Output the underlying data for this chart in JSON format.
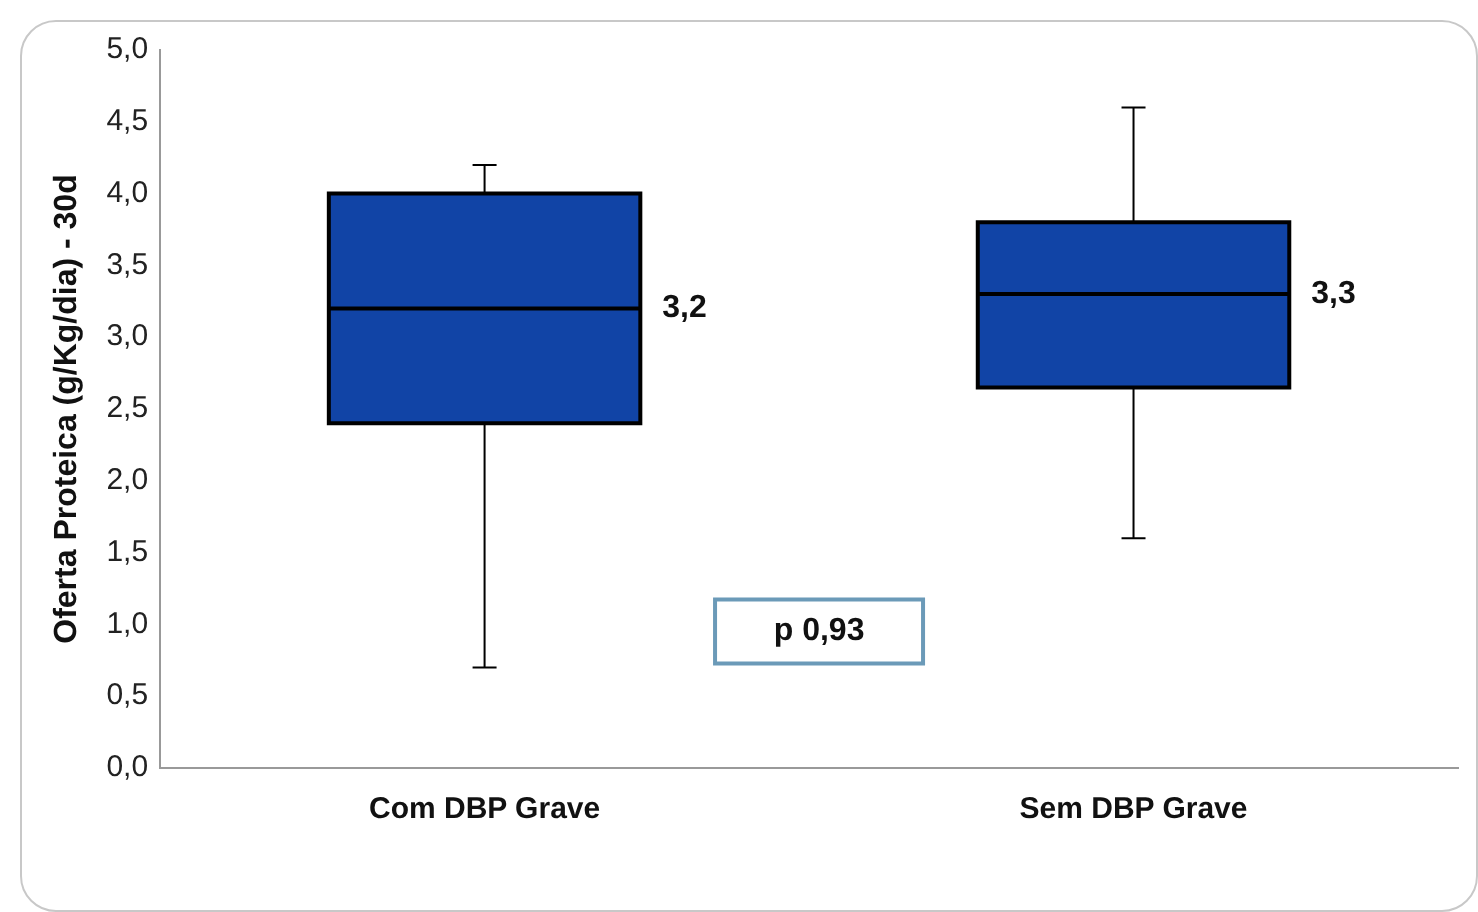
{
  "chart_data": {
    "type": "box",
    "ylabel": "Oferta Proteica (g/Kg/dia) - 30d",
    "categories": [
      "Com DBP Grave",
      "Sem DBP Grave"
    ],
    "boxes": [
      {
        "low": 0.7,
        "q1": 2.4,
        "median": 3.2,
        "q3": 4.0,
        "high": 4.2
      },
      {
        "low": 1.6,
        "q1": 2.65,
        "median": 3.3,
        "q3": 3.8,
        "high": 4.6
      }
    ],
    "value_labels": [
      "3,2",
      "3,3"
    ],
    "color": "#1144a6",
    "ylim": [
      0,
      5
    ],
    "yticks": [
      {
        "value": 0,
        "label": "0,0"
      },
      {
        "value": 0.5,
        "label": "0,5"
      },
      {
        "value": 1,
        "label": "1,0"
      },
      {
        "value": 1.5,
        "label": "1,5"
      },
      {
        "value": 2,
        "label": "2,0"
      },
      {
        "value": 2.5,
        "label": "2,5"
      },
      {
        "value": 3,
        "label": "3,0"
      },
      {
        "value": 3.5,
        "label": "3,5"
      },
      {
        "value": 4,
        "label": "4,0"
      },
      {
        "value": 4.5,
        "label": "4,5"
      },
      {
        "value": 5,
        "label": "5,0"
      }
    ],
    "annotations": [
      "p 0,93"
    ],
    "grid": false,
    "legend": false
  }
}
